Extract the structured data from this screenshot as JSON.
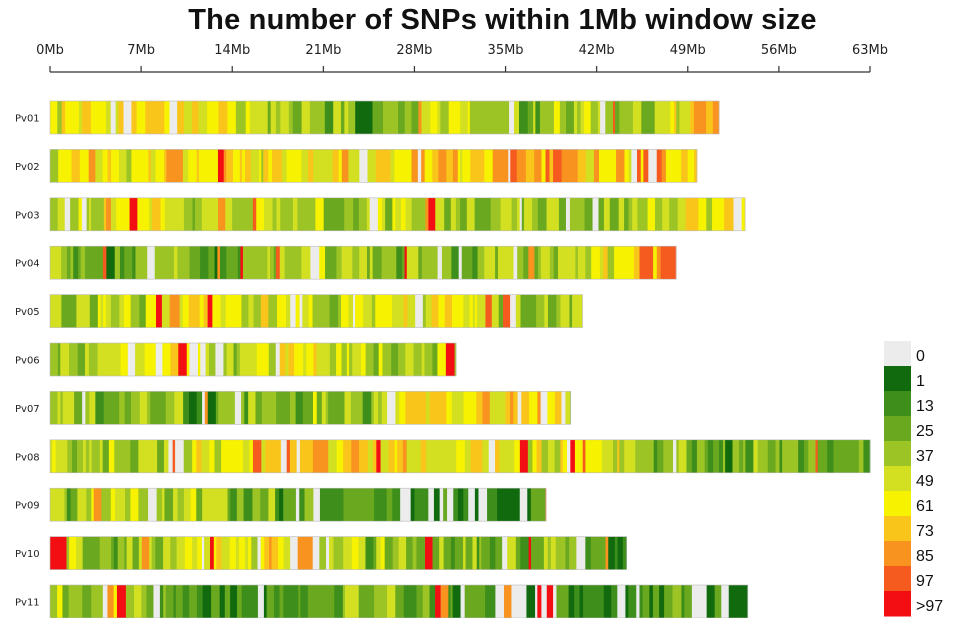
{
  "chart_data": {
    "type": "heatmap",
    "title": "The number of SNPs within 1Mb window size",
    "window_mb": 1,
    "x_axis": {
      "ticks": [
        "0Mb",
        "7Mb",
        "14Mb",
        "21Mb",
        "28Mb",
        "35Mb",
        "42Mb",
        "49Mb",
        "56Mb",
        "63Mb"
      ],
      "range_mb": [
        0,
        63
      ]
    },
    "legend": {
      "placement": "bottom-right",
      "labels": [
        "0",
        "1",
        "13",
        "25",
        "37",
        "49",
        "61",
        "73",
        "85",
        "97",
        ">97"
      ],
      "colors": [
        "#ececec",
        "#116b0e",
        "#3d8e1a",
        "#6aa81f",
        "#9cc425",
        "#d2e021",
        "#f7f200",
        "#f9c51b",
        "#f89320",
        "#f55a1f",
        "#f20e12"
      ]
    },
    "chromosomes": [
      {
        "name": "Pv01",
        "length_mb": 51.4
      },
      {
        "name": "Pv02",
        "length_mb": 49.7
      },
      {
        "name": "Pv03",
        "length_mb": 53.4
      },
      {
        "name": "Pv04",
        "length_mb": 48.1
      },
      {
        "name": "Pv05",
        "length_mb": 40.9
      },
      {
        "name": "Pv06",
        "length_mb": 31.2
      },
      {
        "name": "Pv07",
        "length_mb": 40.0
      },
      {
        "name": "Pv08",
        "length_mb": 63.0
      },
      {
        "name": "Pv09",
        "length_mb": 38.1
      },
      {
        "name": "Pv10",
        "length_mb": 44.3
      },
      {
        "name": "Pv11",
        "length_mb": 53.6
      }
    ]
  }
}
